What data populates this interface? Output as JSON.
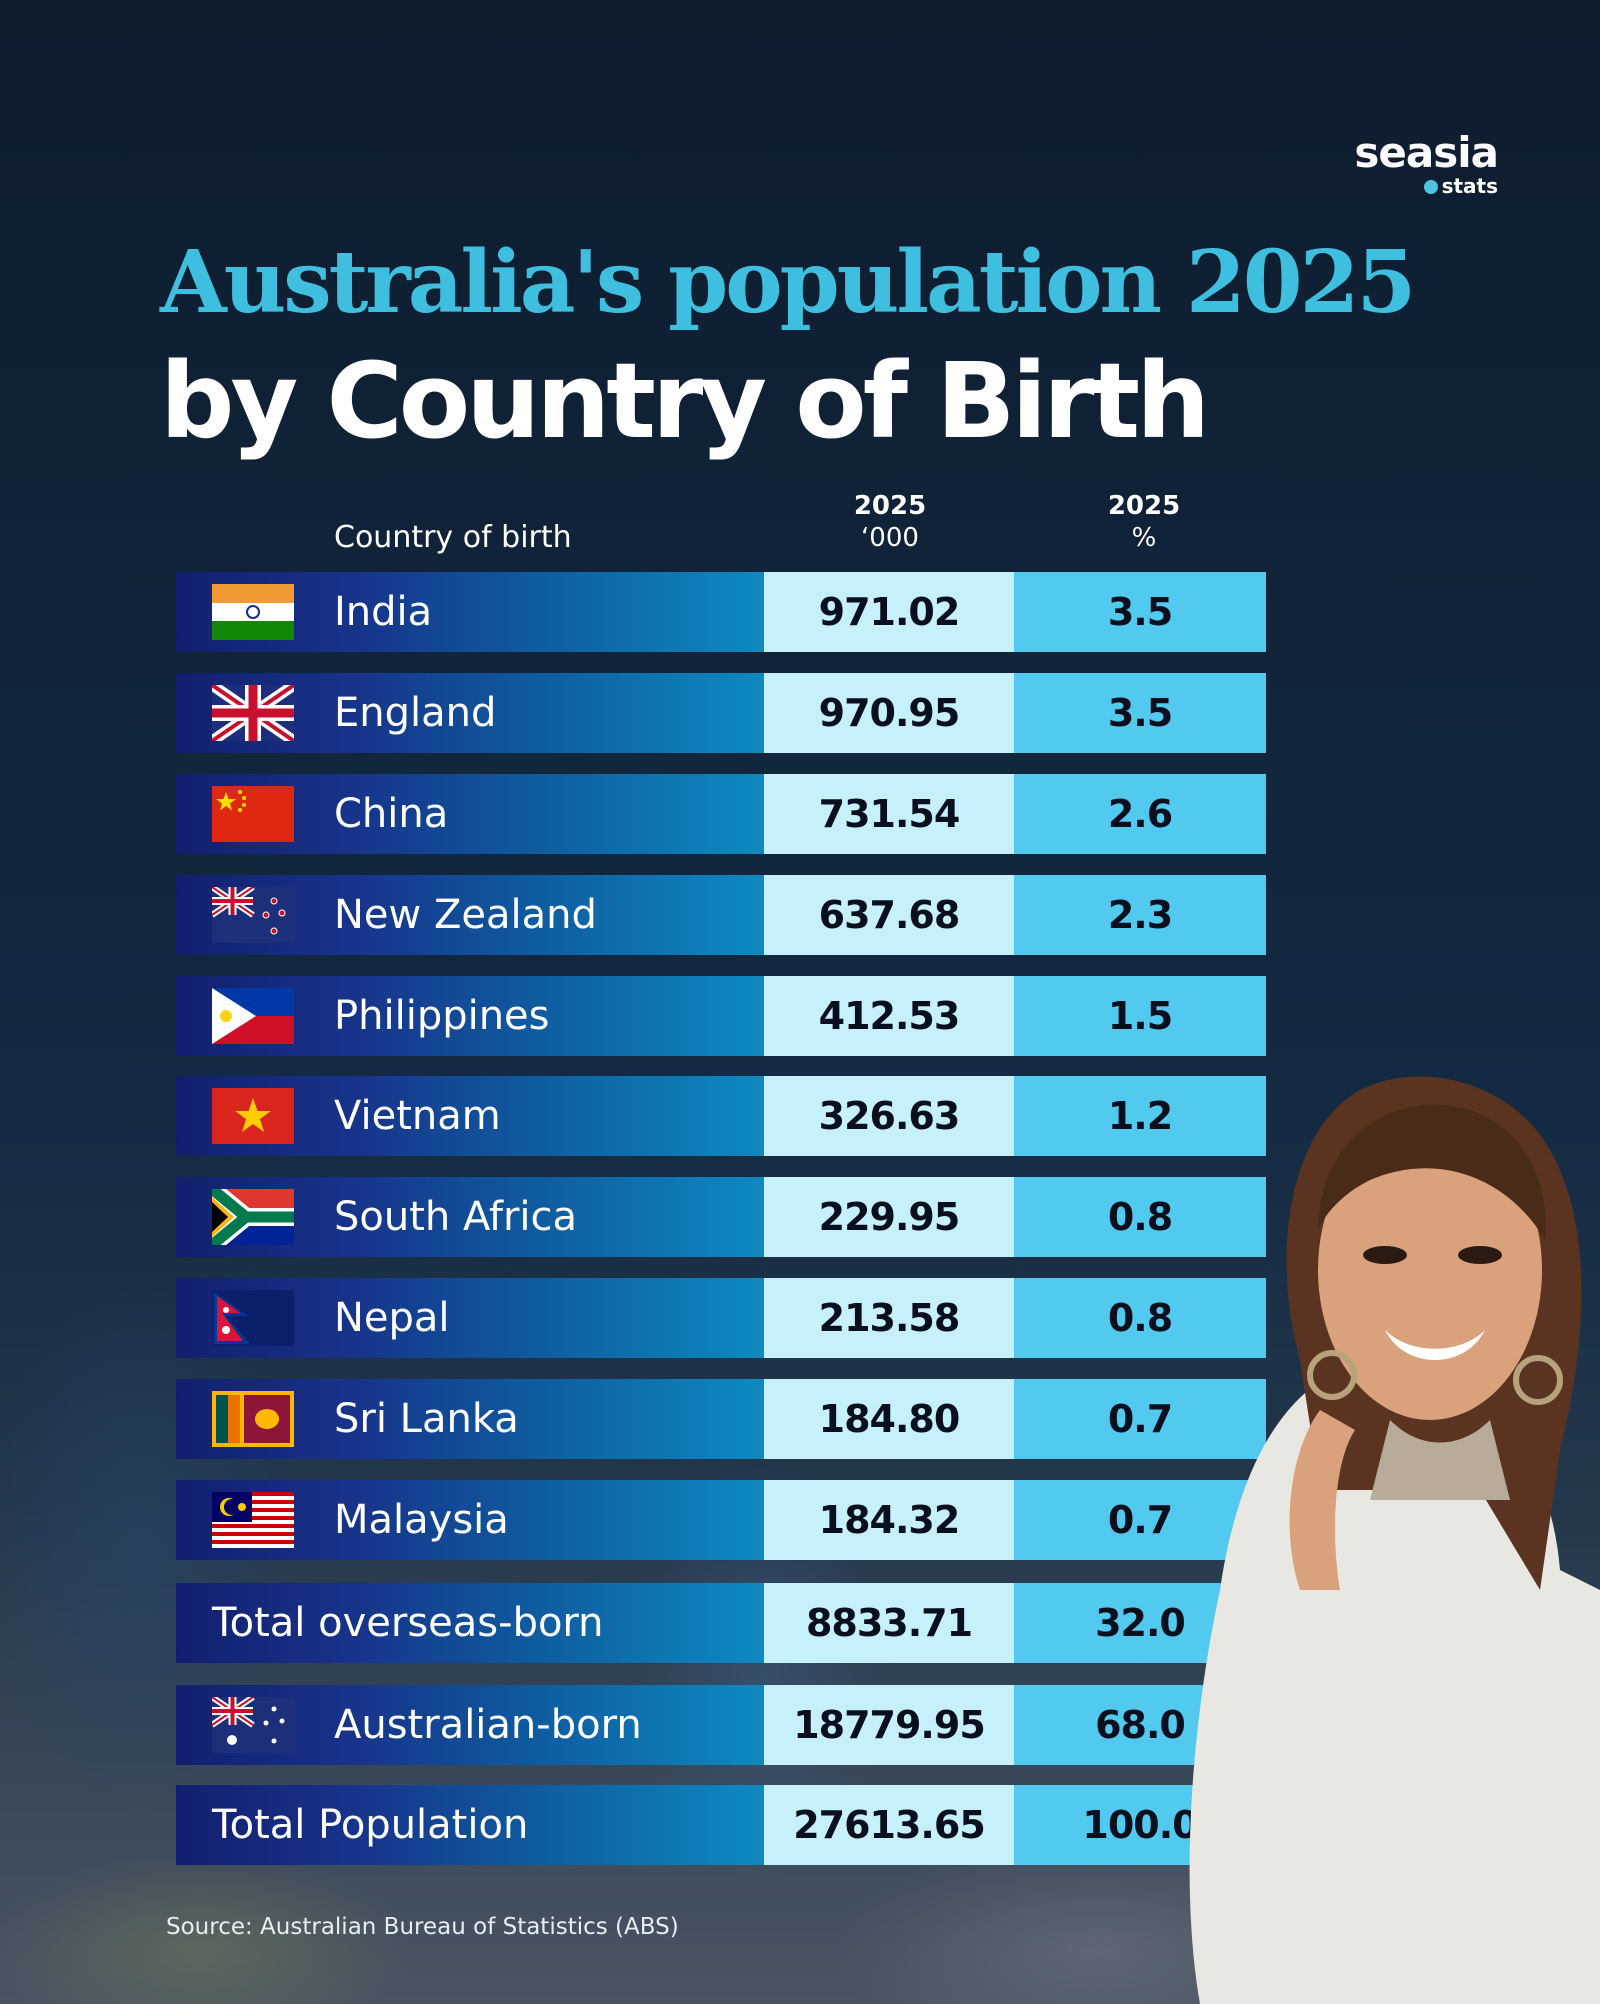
{
  "logo": {
    "word": "seasia",
    "sub": "stats"
  },
  "title": {
    "line1": "Australia's population 2025",
    "line2": "by Country of Birth"
  },
  "columns": {
    "country": "Country of birth",
    "value_year": "2025",
    "value_unit": "‘000",
    "pct_year": "2025",
    "pct_unit": "%"
  },
  "rows": [
    {
      "name": "India",
      "value": "971.02",
      "pct": "3.5",
      "flag": "india-flag-icon"
    },
    {
      "name": "England",
      "value": "970.95",
      "pct": "3.5",
      "flag": "uk-flag-icon"
    },
    {
      "name": "China",
      "value": "731.54",
      "pct": "2.6",
      "flag": "china-flag-icon"
    },
    {
      "name": "New Zealand",
      "value": "637.68",
      "pct": "2.3",
      "flag": "new-zealand-flag-icon"
    },
    {
      "name": "Philippines",
      "value": "412.53",
      "pct": "1.5",
      "flag": "philippines-flag-icon"
    },
    {
      "name": "Vietnam",
      "value": "326.63",
      "pct": "1.2",
      "flag": "vietnam-flag-icon"
    },
    {
      "name": "South Africa",
      "value": "229.95",
      "pct": "0.8",
      "flag": "south-africa-flag-icon"
    },
    {
      "name": "Nepal",
      "value": "213.58",
      "pct": "0.8",
      "flag": "nepal-flag-icon"
    },
    {
      "name": "Sri Lanka",
      "value": "184.80",
      "pct": "0.7",
      "flag": "sri-lanka-flag-icon"
    },
    {
      "name": "Malaysia",
      "value": "184.32",
      "pct": "0.7",
      "flag": "malaysia-flag-icon"
    },
    {
      "name": "Total overseas-born",
      "value": "8833.71",
      "pct": "32.0",
      "flag": null
    },
    {
      "name": "Australian-born",
      "value": "18779.95",
      "pct": "68.0",
      "flag": "australia-flag-icon"
    },
    {
      "name": "Total Population",
      "value": "27613.65",
      "pct": "100.0",
      "flag": null
    }
  ],
  "chart_data": {
    "type": "table",
    "title": "Australia's population 2025 by Country of Birth",
    "columns": [
      "Country of birth",
      "2025 ‘000",
      "2025 %"
    ],
    "categories": [
      "India",
      "England",
      "China",
      "New Zealand",
      "Philippines",
      "Vietnam",
      "South Africa",
      "Nepal",
      "Sri Lanka",
      "Malaysia",
      "Total overseas-born",
      "Australian-born",
      "Total Population"
    ],
    "series": [
      {
        "name": "2025 ‘000",
        "values": [
          971.02,
          970.95,
          731.54,
          637.68,
          412.53,
          326.63,
          229.95,
          213.58,
          184.8,
          184.32,
          8833.71,
          18779.95,
          27613.65
        ]
      },
      {
        "name": "2025 %",
        "values": [
          3.5,
          3.5,
          2.6,
          2.3,
          1.5,
          1.2,
          0.8,
          0.8,
          0.7,
          0.7,
          32.0,
          68.0,
          100.0
        ]
      }
    ]
  },
  "source": "Source: Australian Bureau of Statistics (ABS)",
  "colors": {
    "title_accent": "#3fbfe0",
    "value_cell": "#c6f0fa",
    "pct_cell": "#52c9ee",
    "name_cell_dark": "#131f6e"
  }
}
